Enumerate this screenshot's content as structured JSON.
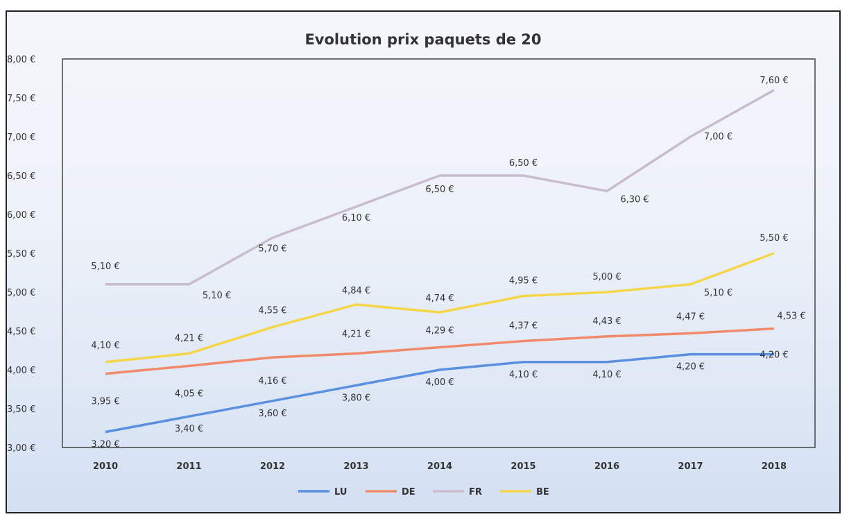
{
  "chart_data": {
    "type": "line",
    "title": "Evolution prix paquets de 20",
    "xlabel": "",
    "ylabel": "",
    "categories": [
      "2010",
      "2011",
      "2012",
      "2013",
      "2014",
      "2015",
      "2016",
      "2017",
      "2018"
    ],
    "ylim": [
      3.0,
      8.0
    ],
    "yticks": [
      "3,00 €",
      "3,50 €",
      "4,00 €",
      "4,50 €",
      "5,00 €",
      "5,50 €",
      "6,00 €",
      "6,50 €",
      "7,00 €",
      "7,50 €",
      "8,00 €"
    ],
    "grid": false,
    "legend_position": "bottom",
    "series": [
      {
        "name": "LU",
        "color": "#5b8fe0",
        "values": [
          3.2,
          3.4,
          3.6,
          3.8,
          4.0,
          4.1,
          4.1,
          4.2,
          4.2
        ],
        "labels": [
          "3,20 €",
          "3,40 €",
          "3,60 €",
          "3,80 €",
          "4,00 €",
          "4,10 €",
          "4,10 €",
          "4,20 €",
          "4,20 €"
        ]
      },
      {
        "name": "DE",
        "color": "#f08a6a",
        "values": [
          3.95,
          4.05,
          4.16,
          4.21,
          4.29,
          4.37,
          4.43,
          4.47,
          4.53
        ],
        "labels": [
          "3,95 €",
          "4,05 €",
          "4,16 €",
          "4,21 €",
          "4,29 €",
          "4,37 €",
          "4,43 €",
          "4,47 €",
          "4,53 €"
        ]
      },
      {
        "name": "FR",
        "color": "#c9bccf",
        "values": [
          5.1,
          5.1,
          5.7,
          6.1,
          6.5,
          6.5,
          6.3,
          7.0,
          7.6
        ],
        "labels": [
          "5,10 €",
          "5,10 €",
          "5,70 €",
          "6,10 €",
          "6,50 €",
          "6,50 €",
          "6,30 €",
          "7,00 €",
          "7,60 €"
        ]
      },
      {
        "name": "BE",
        "color": "#f5d64a",
        "values": [
          4.1,
          4.21,
          4.55,
          4.84,
          4.74,
          4.95,
          5.0,
          5.1,
          5.5
        ],
        "labels": [
          "4,10 €",
          "4,21 €",
          "4,55 €",
          "4,84 €",
          "4,74 €",
          "4,95 €",
          "5,00 €",
          "5,10 €",
          "5,50 €"
        ]
      }
    ]
  }
}
